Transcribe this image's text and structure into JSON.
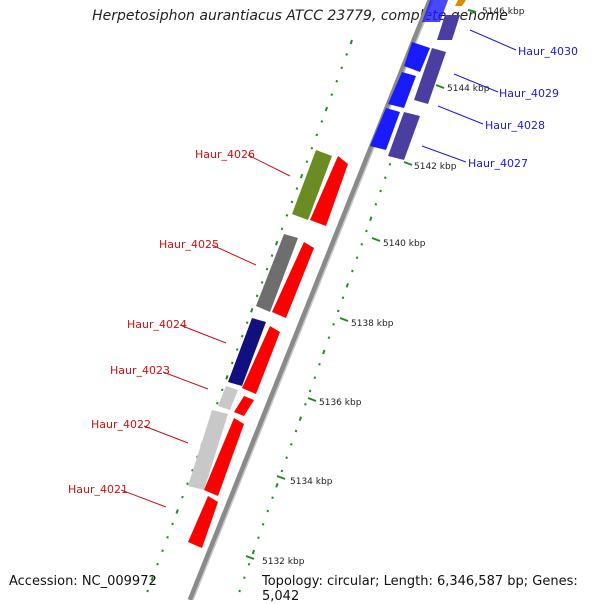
{
  "title": "Herpetosiphon aurantiacus ATCC 23779, complete genome",
  "footer": {
    "accession": "Accession: NC_009972",
    "topology": "Topology: circular; Length: 6,346,587 bp; Genes: 5,042"
  },
  "ticks": [
    "5146 kbp",
    "5144 kbp",
    "5142 kbp",
    "5140 kbp",
    "5138 kbp",
    "5136 kbp",
    "5134 kbp",
    "5132 kbp"
  ],
  "genes_forward": [
    "Haur_4030",
    "Haur_4029",
    "Haur_4028",
    "Haur_4027"
  ],
  "genes_reverse": [
    "Haur_4026",
    "Haur_4025",
    "Haur_4024",
    "Haur_4023",
    "Haur_4022",
    "Haur_4021"
  ],
  "colors": {
    "forward_label": "#1a1adc",
    "reverse_label": "#cc1111",
    "cds_red": "#ff0000",
    "cds_blue": "#1a1aff",
    "cds_purple": "#4a3fa0",
    "cds_olive": "#6b8c23",
    "cds_gray": "#6e6e6e",
    "cds_navy": "#101080",
    "cds_lightgray": "#c8c8c8",
    "gc_dots": "#1e8c1e"
  }
}
